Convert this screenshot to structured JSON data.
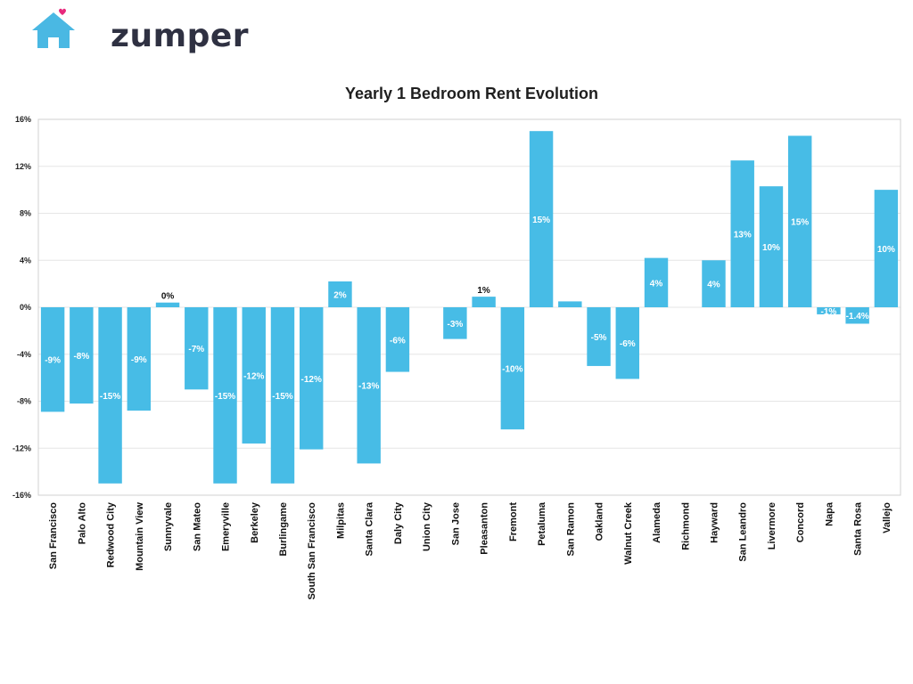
{
  "brand": {
    "name": "zumper",
    "house_color": "#4ab8e3",
    "heart_color": "#e8287c",
    "text_color": "#2f3142"
  },
  "chart_data": {
    "type": "bar",
    "title": "Yearly 1 Bedroom Rent Evolution",
    "xlabel": "",
    "ylabel": "",
    "ylim": [
      -16,
      16
    ],
    "yticks": [
      -16,
      -12,
      -8,
      -4,
      0,
      4,
      8,
      12,
      16
    ],
    "ytick_labels": [
      "-16%",
      "-12%",
      "-8%",
      "-4%",
      "0%",
      "4%",
      "8%",
      "12%",
      "16%"
    ],
    "grid": true,
    "bar_color": "#47bce6",
    "categories": [
      "San Francisco",
      "Palo Alto",
      "Redwood City",
      "Mountain View",
      "Sunnyvale",
      "San Mateo",
      "Emeryville",
      "Berkeley",
      "Burlingame",
      "South San Francisco",
      "Milpitas",
      "Santa Clara",
      "Daly City",
      "Union City",
      "San Jose",
      "Pleasanton",
      "Fremont",
      "Petaluma",
      "San Ramon",
      "Oakland",
      "Walnut Creek",
      "Alameda",
      "Richmond",
      "Hayward",
      "San Leandro",
      "Livermore",
      "Concord",
      "Napa",
      "Santa Rosa",
      "Vallejo"
    ],
    "values": [
      -8.9,
      -8.2,
      -15.0,
      -8.8,
      0.4,
      -7.0,
      -15.0,
      -11.6,
      -15.0,
      -12.1,
      2.2,
      -13.3,
      -5.5,
      0.0,
      -2.7,
      0.9,
      -10.4,
      15.0,
      0.5,
      -5.0,
      -6.1,
      4.2,
      0.0,
      4.0,
      12.5,
      10.3,
      14.6,
      -0.6,
      -1.4,
      10.0
    ],
    "data_labels": [
      "-9%",
      "-8%",
      "-15%",
      "-9%",
      "0%",
      "-7%",
      "-15%",
      "-12%",
      "-15%",
      "-12%",
      "2%",
      "-13%",
      "-6%",
      "",
      "-3%",
      "1%",
      "-10%",
      "15%",
      "",
      "-5%",
      "-6%",
      "4%",
      "",
      "4%",
      "13%",
      "10%",
      "15%",
      "-1%",
      "-1.4%",
      "10%"
    ]
  }
}
